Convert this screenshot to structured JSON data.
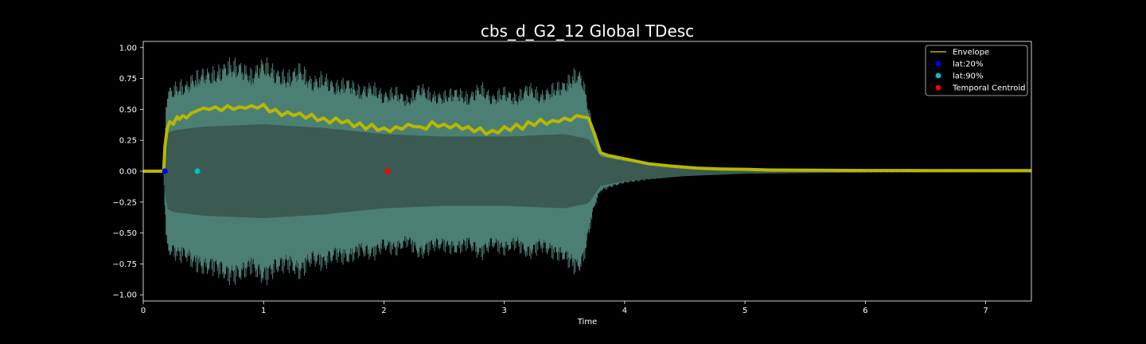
{
  "chart_data": {
    "type": "line",
    "title": "cbs_d_G2_12 Global TDesc",
    "xlabel": "Time",
    "ylabel": "",
    "xlim": [
      0,
      7.38
    ],
    "ylim": [
      -1.05,
      1.05
    ],
    "x_ticks": [
      0,
      1,
      2,
      3,
      4,
      5,
      6,
      7
    ],
    "y_ticks": [
      1.0,
      0.75,
      0.5,
      0.25,
      0.0,
      -0.25,
      -0.5,
      -0.75,
      -1.0
    ],
    "x_tick_labels": [
      "0",
      "1",
      "2",
      "3",
      "4",
      "5",
      "6",
      "7"
    ],
    "y_tick_labels": [
      "1.00",
      "0.75",
      "0.50",
      "0.25",
      "0.00",
      "−0.25",
      "−0.50",
      "−0.75",
      "−1.00"
    ],
    "waveform": {
      "color": "#4c7f74",
      "inner_color": "#3a5a52",
      "outer_amplitude": {
        "x": [
          0,
          0.17,
          0.18,
          0.19,
          0.2,
          0.25,
          0.3,
          0.35,
          0.4,
          0.5,
          0.6,
          0.7,
          0.8,
          0.9,
          1.0,
          1.1,
          1.2,
          1.3,
          1.4,
          1.5,
          1.6,
          1.7,
          1.8,
          1.9,
          2.0,
          2.1,
          2.2,
          2.3,
          2.4,
          2.5,
          2.6,
          2.7,
          2.8,
          2.9,
          3.0,
          3.1,
          3.2,
          3.3,
          3.4,
          3.5,
          3.6,
          3.65,
          3.7,
          3.75,
          3.8,
          3.9,
          4.0,
          4.2,
          4.4,
          4.6,
          4.8,
          5.0,
          5.5,
          6.0,
          6.5,
          7.0,
          7.38
        ],
        "y": [
          0.01,
          0.01,
          0.3,
          0.55,
          0.7,
          0.72,
          0.75,
          0.74,
          0.8,
          0.86,
          0.85,
          0.93,
          0.92,
          0.84,
          0.95,
          0.86,
          0.82,
          0.9,
          0.78,
          0.82,
          0.74,
          0.78,
          0.7,
          0.74,
          0.66,
          0.7,
          0.62,
          0.74,
          0.66,
          0.66,
          0.7,
          0.64,
          0.74,
          0.64,
          0.7,
          0.64,
          0.74,
          0.66,
          0.72,
          0.76,
          0.86,
          0.82,
          0.55,
          0.3,
          0.17,
          0.13,
          0.1,
          0.07,
          0.05,
          0.03,
          0.025,
          0.02,
          0.015,
          0.012,
          0.01,
          0.01,
          0.01
        ]
      },
      "inner_amplitude": {
        "x": [
          0,
          0.17,
          0.19,
          0.25,
          0.5,
          1.0,
          1.5,
          2.0,
          2.5,
          3.0,
          3.5,
          3.7,
          3.8,
          4.0,
          4.5,
          5.0,
          6.0,
          7.38
        ],
        "y": [
          0.0,
          0.0,
          0.3,
          0.33,
          0.36,
          0.38,
          0.35,
          0.3,
          0.28,
          0.28,
          0.3,
          0.26,
          0.12,
          0.08,
          0.04,
          0.02,
          0.01,
          0.005
        ]
      }
    },
    "series": [
      {
        "name": "Envelope",
        "type": "line",
        "color": "#b8b800",
        "x": [
          0,
          0.17,
          0.18,
          0.2,
          0.22,
          0.25,
          0.28,
          0.3,
          0.33,
          0.36,
          0.4,
          0.45,
          0.5,
          0.55,
          0.6,
          0.65,
          0.7,
          0.75,
          0.8,
          0.85,
          0.9,
          0.95,
          1.0,
          1.05,
          1.1,
          1.15,
          1.2,
          1.25,
          1.3,
          1.35,
          1.4,
          1.45,
          1.5,
          1.55,
          1.6,
          1.65,
          1.7,
          1.75,
          1.8,
          1.85,
          1.9,
          1.95,
          2.0,
          2.05,
          2.1,
          2.15,
          2.2,
          2.25,
          2.3,
          2.35,
          2.4,
          2.45,
          2.5,
          2.55,
          2.6,
          2.65,
          2.7,
          2.75,
          2.8,
          2.85,
          2.9,
          2.95,
          3.0,
          3.05,
          3.1,
          3.15,
          3.2,
          3.25,
          3.3,
          3.35,
          3.4,
          3.45,
          3.5,
          3.55,
          3.6,
          3.65,
          3.7,
          3.75,
          3.8,
          3.85,
          3.9,
          4.0,
          4.1,
          4.2,
          4.4,
          4.6,
          4.8,
          5.0,
          5.2,
          5.5,
          6.0,
          6.5,
          7.0,
          7.38
        ],
        "y": [
          0.0,
          0.0,
          0.2,
          0.35,
          0.4,
          0.38,
          0.44,
          0.42,
          0.45,
          0.43,
          0.47,
          0.49,
          0.51,
          0.5,
          0.52,
          0.49,
          0.53,
          0.5,
          0.52,
          0.51,
          0.53,
          0.51,
          0.54,
          0.48,
          0.5,
          0.45,
          0.48,
          0.45,
          0.47,
          0.43,
          0.46,
          0.41,
          0.43,
          0.39,
          0.43,
          0.39,
          0.41,
          0.36,
          0.39,
          0.34,
          0.38,
          0.33,
          0.35,
          0.32,
          0.36,
          0.34,
          0.38,
          0.36,
          0.36,
          0.34,
          0.4,
          0.36,
          0.38,
          0.35,
          0.38,
          0.34,
          0.36,
          0.32,
          0.35,
          0.3,
          0.33,
          0.31,
          0.36,
          0.33,
          0.38,
          0.34,
          0.4,
          0.37,
          0.42,
          0.38,
          0.41,
          0.4,
          0.43,
          0.41,
          0.45,
          0.44,
          0.43,
          0.3,
          0.15,
          0.13,
          0.12,
          0.1,
          0.08,
          0.06,
          0.04,
          0.025,
          0.018,
          0.015,
          0.01,
          0.008,
          0.006,
          0.005,
          0.005,
          0.005
        ]
      },
      {
        "name": "lat:20%",
        "type": "scatter",
        "color": "#0000ff",
        "x": [
          0.18
        ],
        "y": [
          0.0
        ]
      },
      {
        "name": "lat:90%",
        "type": "scatter",
        "color": "#00c0c0",
        "x": [
          0.45
        ],
        "y": [
          0.0
        ]
      },
      {
        "name": "Temporal Centroid",
        "type": "scatter",
        "color": "#ff0000",
        "x": [
          2.03
        ],
        "y": [
          0.0
        ]
      }
    ],
    "legend_position": "top-right",
    "grid": false,
    "colors": {
      "background": "#000000",
      "axes": "#ffffff",
      "text": "#ffffff"
    }
  }
}
